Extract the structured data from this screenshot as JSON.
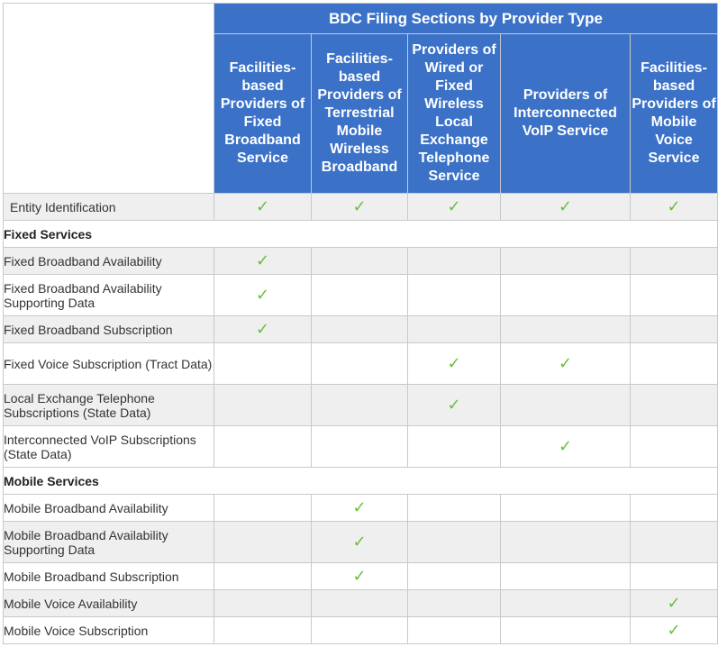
{
  "table": {
    "group_title": "BDC Filing Sections by Provider Type",
    "columns": [
      "Facilities-based Providers of Fixed Broadband Service",
      "Facilities-based Providers of Terrestrial Mobile Wireless Broadband",
      "Providers of Wired or Fixed Wireless Local Exchange Telephone Service",
      "Providers of Interconnected VoIP Service",
      "Facilities-based Providers of Mobile Voice Service"
    ],
    "check_symbol": "✓",
    "rows": [
      {
        "kind": "item",
        "indent": false,
        "shade": true,
        "label": "Entity Identification",
        "checks": [
          true,
          true,
          true,
          true,
          true
        ]
      },
      {
        "kind": "section",
        "label": "Fixed Services"
      },
      {
        "kind": "item",
        "indent": true,
        "shade": true,
        "label": "Fixed Broadband Availability",
        "checks": [
          true,
          false,
          false,
          false,
          false
        ]
      },
      {
        "kind": "item",
        "indent": true,
        "shade": false,
        "label": "Fixed Broadband Availability Supporting Data",
        "checks": [
          true,
          false,
          false,
          false,
          false
        ]
      },
      {
        "kind": "item",
        "indent": true,
        "shade": true,
        "label": "Fixed Broadband Subscription",
        "checks": [
          true,
          false,
          false,
          false,
          false
        ]
      },
      {
        "kind": "item",
        "indent": true,
        "shade": false,
        "label": "Fixed Voice Subscription (Tract Data)",
        "checks": [
          false,
          false,
          true,
          true,
          false
        ]
      },
      {
        "kind": "item",
        "indent": true,
        "shade": true,
        "label": "Local Exchange Telephone Subscriptions (State Data)",
        "checks": [
          false,
          false,
          true,
          false,
          false
        ]
      },
      {
        "kind": "item",
        "indent": true,
        "shade": false,
        "label": "Interconnected VoIP Subscriptions (State Data)",
        "checks": [
          false,
          false,
          false,
          true,
          false
        ]
      },
      {
        "kind": "section",
        "label": "Mobile Services"
      },
      {
        "kind": "item",
        "indent": true,
        "shade": false,
        "label": "Mobile Broadband Availability",
        "checks": [
          false,
          true,
          false,
          false,
          false
        ]
      },
      {
        "kind": "item",
        "indent": true,
        "shade": true,
        "label": "Mobile Broadband Availability Supporting Data",
        "checks": [
          false,
          true,
          false,
          false,
          false
        ]
      },
      {
        "kind": "item",
        "indent": true,
        "shade": false,
        "label": "Mobile Broadband Subscription",
        "checks": [
          false,
          true,
          false,
          false,
          false
        ]
      },
      {
        "kind": "item",
        "indent": true,
        "shade": true,
        "label": "Mobile Voice Availability",
        "checks": [
          false,
          false,
          false,
          false,
          true
        ]
      },
      {
        "kind": "item",
        "indent": true,
        "shade": false,
        "label": "Mobile Voice Subscription",
        "checks": [
          false,
          false,
          false,
          false,
          true
        ]
      }
    ]
  }
}
